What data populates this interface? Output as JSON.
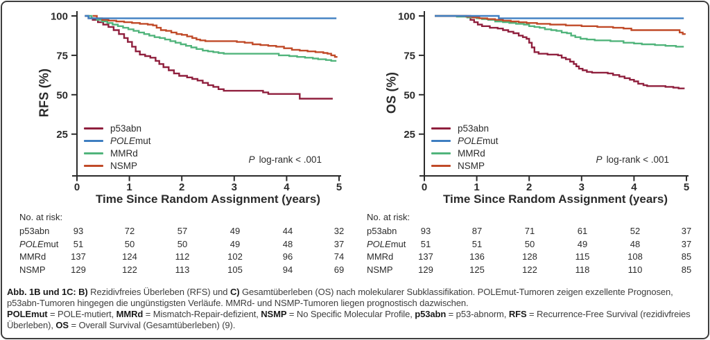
{
  "figure": {
    "background": "#ffffff",
    "border_color": "#3d3d3d",
    "text_color": "#2b2b2b"
  },
  "chart_data": [
    {
      "type": "line",
      "subtype": "kaplan-meier-step",
      "title": "",
      "ylabel": "RFS (%)",
      "xlabel": "Time Since Random Assignment (years)",
      "xlim": [
        0,
        5
      ],
      "ylim": [
        0,
        100
      ],
      "xticks": [
        "0",
        "1",
        "2",
        "3",
        "4",
        "5"
      ],
      "yticks": [
        100,
        75,
        50,
        25
      ],
      "grid": "off",
      "legend_position": "lower-left",
      "p_label": "P",
      "p_text": "log-rank < .001",
      "series": [
        {
          "name": "p53abn",
          "color": "#8F1F3D",
          "points": [
            [
              0.15,
              100
            ],
            [
              0.22,
              98.5
            ],
            [
              0.3,
              97.5
            ],
            [
              0.4,
              96
            ],
            [
              0.5,
              94.5
            ],
            [
              0.6,
              93
            ],
            [
              0.7,
              91
            ],
            [
              0.8,
              88.5
            ],
            [
              0.9,
              86
            ],
            [
              0.97,
              83.5
            ],
            [
              1.05,
              80.5
            ],
            [
              1.12,
              77.5
            ],
            [
              1.2,
              75.5
            ],
            [
              1.3,
              74.5
            ],
            [
              1.4,
              73.5
            ],
            [
              1.5,
              71.5
            ],
            [
              1.57,
              69.5
            ],
            [
              1.65,
              67.5
            ],
            [
              1.75,
              65.5
            ],
            [
              1.85,
              63.5
            ],
            [
              1.95,
              62
            ],
            [
              2.1,
              61
            ],
            [
              2.2,
              60
            ],
            [
              2.3,
              59
            ],
            [
              2.4,
              57.5
            ],
            [
              2.5,
              56
            ],
            [
              2.6,
              55
            ],
            [
              2.7,
              53.5
            ],
            [
              2.8,
              52.5
            ],
            [
              3.45,
              52.5
            ],
            [
              3.55,
              51.5
            ],
            [
              3.65,
              50.5
            ],
            [
              4.2,
              50.5
            ],
            [
              4.25,
              47.5
            ],
            [
              4.88,
              47.5
            ]
          ]
        },
        {
          "name_italic": "POLE",
          "name": "mut",
          "color": "#3E7EC1",
          "points": [
            [
              0.15,
              100
            ],
            [
              0.22,
              98.5
            ],
            [
              4.95,
              98.5
            ]
          ]
        },
        {
          "name": "MMRd",
          "color": "#50B47B",
          "points": [
            [
              0.18,
              100
            ],
            [
              0.28,
              98.5
            ],
            [
              0.38,
              97.5
            ],
            [
              0.48,
              96.5
            ],
            [
              0.58,
              95.5
            ],
            [
              0.68,
              94.5
            ],
            [
              0.78,
              93.5
            ],
            [
              0.88,
              92.5
            ],
            [
              0.98,
              91.5
            ],
            [
              1.08,
              90.5
            ],
            [
              1.18,
              89.5
            ],
            [
              1.28,
              88.5
            ],
            [
              1.38,
              87.5
            ],
            [
              1.48,
              86.5
            ],
            [
              1.58,
              86
            ],
            [
              1.68,
              85
            ],
            [
              1.78,
              84
            ],
            [
              1.88,
              83
            ],
            [
              1.98,
              82
            ],
            [
              2.08,
              81
            ],
            [
              2.18,
              80
            ],
            [
              2.28,
              79
            ],
            [
              2.4,
              78
            ],
            [
              2.5,
              77.5
            ],
            [
              2.6,
              77
            ],
            [
              2.7,
              76.5
            ],
            [
              2.8,
              76
            ],
            [
              3.7,
              76
            ],
            [
              3.85,
              75
            ],
            [
              4.05,
              74.5
            ],
            [
              4.2,
              74
            ],
            [
              4.35,
              73.5
            ],
            [
              4.5,
              73
            ],
            [
              4.6,
              72.5
            ],
            [
              4.75,
              72
            ],
            [
              4.85,
              71.5
            ],
            [
              4.95,
              71.5
            ]
          ]
        },
        {
          "name": "NSMP",
          "color": "#C04A28",
          "points": [
            [
              0.3,
              100
            ],
            [
              0.38,
              98.5
            ],
            [
              0.48,
              97.5
            ],
            [
              0.6,
              97
            ],
            [
              0.75,
              96.5
            ],
            [
              0.9,
              96
            ],
            [
              1.05,
              95.5
            ],
            [
              1.2,
              95
            ],
            [
              1.35,
              94.5
            ],
            [
              1.45,
              94
            ],
            [
              1.52,
              92.5
            ],
            [
              1.6,
              91
            ],
            [
              1.7,
              90.5
            ],
            [
              1.8,
              89.5
            ],
            [
              1.9,
              88.5
            ],
            [
              2.0,
              88
            ],
            [
              2.1,
              87
            ],
            [
              2.2,
              86
            ],
            [
              2.28,
              85
            ],
            [
              2.35,
              84.5
            ],
            [
              2.45,
              84
            ],
            [
              2.95,
              84
            ],
            [
              3.05,
              83.5
            ],
            [
              3.2,
              83
            ],
            [
              3.35,
              82
            ],
            [
              3.5,
              81.5
            ],
            [
              3.65,
              81
            ],
            [
              3.8,
              80.5
            ],
            [
              3.95,
              79.5
            ],
            [
              4.1,
              78.5
            ],
            [
              4.25,
              78
            ],
            [
              4.4,
              77.5
            ],
            [
              4.55,
              77
            ],
            [
              4.7,
              76.5
            ],
            [
              4.78,
              76
            ],
            [
              4.85,
              75
            ],
            [
              4.92,
              74
            ],
            [
              4.97,
              74
            ]
          ]
        }
      ],
      "risk_table": {
        "title": "No. at risk:",
        "rows": [
          {
            "label": "p53abn",
            "values": [
              93,
              72,
              57,
              49,
              44,
              32
            ]
          },
          {
            "label_italic": "POLE",
            "label": "mut",
            "values": [
              51,
              50,
              50,
              49,
              48,
              37
            ]
          },
          {
            "label": "MMRd",
            "values": [
              137,
              124,
              112,
              102,
              96,
              74
            ]
          },
          {
            "label": "NSMP",
            "values": [
              129,
              122,
              113,
              105,
              94,
              69
            ]
          }
        ]
      }
    },
    {
      "type": "line",
      "subtype": "kaplan-meier-step",
      "title": "",
      "ylabel": "OS (%)",
      "xlabel": "Time Since Random Assignment (years)",
      "xlim": [
        0,
        5
      ],
      "ylim": [
        0,
        100
      ],
      "xticks": [
        "0",
        "1",
        "2",
        "3",
        "4",
        "5"
      ],
      "yticks": [
        100,
        75,
        50,
        25
      ],
      "grid": "off",
      "legend_position": "lower-left",
      "p_label": "P",
      "p_text": "log-rank < .001",
      "series": [
        {
          "name": "p53abn",
          "color": "#8F1F3D",
          "points": [
            [
              0.2,
              100
            ],
            [
              0.88,
              97.5
            ],
            [
              0.95,
              96
            ],
            [
              1.02,
              94.5
            ],
            [
              1.1,
              93.5
            ],
            [
              1.25,
              92.5
            ],
            [
              1.4,
              92
            ],
            [
              1.5,
              91
            ],
            [
              1.6,
              90
            ],
            [
              1.7,
              89
            ],
            [
              1.8,
              87.5
            ],
            [
              1.88,
              86.5
            ],
            [
              1.95,
              85.5
            ],
            [
              2.0,
              83
            ],
            [
              2.05,
              80
            ],
            [
              2.1,
              77
            ],
            [
              2.18,
              76
            ],
            [
              2.35,
              75.5
            ],
            [
              2.55,
              75
            ],
            [
              2.62,
              73.5
            ],
            [
              2.7,
              72.5
            ],
            [
              2.78,
              71
            ],
            [
              2.85,
              69.5
            ],
            [
              2.9,
              68
            ],
            [
              2.95,
              66.5
            ],
            [
              3.02,
              65.5
            ],
            [
              3.1,
              64.5
            ],
            [
              3.2,
              64
            ],
            [
              3.5,
              63.5
            ],
            [
              3.6,
              62.5
            ],
            [
              3.72,
              61.5
            ],
            [
              3.82,
              60.5
            ],
            [
              3.92,
              59.5
            ],
            [
              4.0,
              58.5
            ],
            [
              4.08,
              57
            ],
            [
              4.18,
              56
            ],
            [
              4.25,
              55.5
            ],
            [
              4.6,
              55
            ],
            [
              4.75,
              54.5
            ],
            [
              4.85,
              54
            ],
            [
              4.95,
              53.5
            ]
          ]
        },
        {
          "name_italic": "POLE",
          "name": "mut",
          "color": "#3E7EC1",
          "points": [
            [
              0.2,
              100
            ],
            [
              1.42,
              98.5
            ],
            [
              4.95,
              98.5
            ]
          ]
        },
        {
          "name": "MMRd",
          "color": "#50B47B",
          "points": [
            [
              0.2,
              100
            ],
            [
              0.62,
              99.5
            ],
            [
              0.82,
              99
            ],
            [
              1.0,
              98.5
            ],
            [
              1.1,
              98
            ],
            [
              1.22,
              97.5
            ],
            [
              1.35,
              96.5
            ],
            [
              1.5,
              96
            ],
            [
              1.62,
              95.5
            ],
            [
              1.75,
              95
            ],
            [
              1.9,
              94.5
            ],
            [
              2.0,
              93.5
            ],
            [
              2.1,
              93
            ],
            [
              2.2,
              92.5
            ],
            [
              2.3,
              91.5
            ],
            [
              2.42,
              91
            ],
            [
              2.52,
              90.5
            ],
            [
              2.62,
              89.5
            ],
            [
              2.72,
              89
            ],
            [
              2.8,
              87.5
            ],
            [
              2.88,
              86.5
            ],
            [
              2.98,
              85.5
            ],
            [
              3.1,
              85
            ],
            [
              3.25,
              84.5
            ],
            [
              3.55,
              84
            ],
            [
              3.8,
              83
            ],
            [
              4.0,
              82.5
            ],
            [
              4.15,
              82
            ],
            [
              4.4,
              81.5
            ],
            [
              4.6,
              81
            ],
            [
              4.8,
              80.5
            ],
            [
              4.95,
              80.5
            ]
          ]
        },
        {
          "name": "NSMP",
          "color": "#C04A28",
          "points": [
            [
              0.2,
              100
            ],
            [
              0.8,
              99.5
            ],
            [
              0.92,
              99
            ],
            [
              1.05,
              98.5
            ],
            [
              1.2,
              98
            ],
            [
              1.35,
              97.5
            ],
            [
              1.5,
              97
            ],
            [
              1.65,
              96.5
            ],
            [
              1.8,
              96
            ],
            [
              1.95,
              95.5
            ],
            [
              2.15,
              95
            ],
            [
              2.4,
              94.5
            ],
            [
              2.7,
              94
            ],
            [
              3.0,
              93.5
            ],
            [
              3.3,
              93
            ],
            [
              3.6,
              92.5
            ],
            [
              3.8,
              92
            ],
            [
              3.95,
              91
            ],
            [
              4.8,
              91
            ],
            [
              4.87,
              89.5
            ],
            [
              4.93,
              88.5
            ],
            [
              4.97,
              88
            ]
          ]
        }
      ],
      "risk_table": {
        "title": "No. at risk:",
        "rows": [
          {
            "label": "p53abn",
            "values": [
              93,
              87,
              71,
              61,
              52,
              37
            ]
          },
          {
            "label_italic": "POLE",
            "label": "mut",
            "values": [
              51,
              51,
              50,
              49,
              48,
              37
            ]
          },
          {
            "label": "MMRd",
            "values": [
              137,
              136,
              128,
              115,
              108,
              85
            ]
          },
          {
            "label": "NSMP",
            "values": [
              129,
              125,
              122,
              118,
              110,
              85
            ]
          }
        ]
      }
    }
  ],
  "caption": {
    "p1": [
      "Abb. 1B und 1C: B)",
      " Rezidivfreies Überleben (RFS) und ",
      "C)",
      " Gesamtüberleben (OS) nach molekularer Subklassifikation. POLEmut-Tumoren zeigen exzellente Prognosen, p53abn-Tumoren hingegen die ungünstigsten Verläufe. MMRd- und NSMP-Tumoren liegen prognostisch dazwischen."
    ],
    "p2": [
      "POLEmut",
      " = POLE-mutiert, ",
      "MMRd",
      " = Mismatch-Repair-defizient, ",
      "NSMP",
      " = No Specific Molecular Profile, ",
      "p53abn",
      " = p53-abnorm, ",
      "RFS",
      " = Recurrence-Free Survival (rezidivfreies Überleben), ",
      "OS",
      " = Overall Survival (Gesamtüberleben) (9)."
    ]
  }
}
